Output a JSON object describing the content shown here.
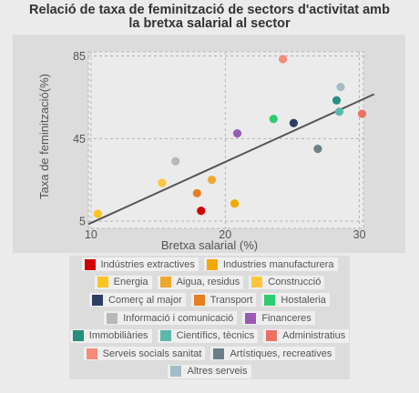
{
  "chart_data": {
    "type": "scatter",
    "title": "Relació de taxa de feminització de sectors d'activitat amb la bretxa salarial al sector",
    "title_lines": [
      "Relació de taxa de feminització de sectors d'activitat amb",
      "la bretxa salarial al sector"
    ],
    "xlabel": "Bretxa salarial (%)",
    "ylabel": "Taxa de feminització(%)",
    "xlim": [
      9.8,
      30.3
    ],
    "ylim": [
      1.5,
      87
    ],
    "xticks": [
      10,
      20,
      30
    ],
    "yticks": [
      5,
      45,
      85
    ],
    "grid": true,
    "legend_position": "bottom",
    "trendline": {
      "x": [
        9.8,
        31.1
      ],
      "y": [
        3.5,
        66.5
      ],
      "color": "#555555"
    },
    "points": [
      {
        "name": "Indústries extractives",
        "x": 18.2,
        "y": 10.0,
        "color": "#d40000"
      },
      {
        "name": "Industries manufacturera",
        "x": 20.7,
        "y": 13.5,
        "color": "#f5a800"
      },
      {
        "name": "Energia",
        "x": 10.5,
        "y": 8.5,
        "color": "#fdc521"
      },
      {
        "name": "Aigua, residus",
        "x": 19.0,
        "y": 25.0,
        "color": "#f1a630"
      },
      {
        "name": "Construcció",
        "x": 15.3,
        "y": 23.5,
        "color": "#ffc53d"
      },
      {
        "name": "Comerç al major",
        "x": 25.1,
        "y": 52.5,
        "color": "#2e3f63"
      },
      {
        "name": "Transport",
        "x": 17.9,
        "y": 18.5,
        "color": "#e67e22"
      },
      {
        "name": "Hostaleria",
        "x": 23.6,
        "y": 54.5,
        "color": "#2ecc71"
      },
      {
        "name": "Informació i comunicació",
        "x": 16.3,
        "y": 34.0,
        "color": "#b8b8b8"
      },
      {
        "name": "Financeres",
        "x": 20.9,
        "y": 47.5,
        "color": "#9b59b6"
      },
      {
        "name": "Immobiliàries",
        "x": 28.3,
        "y": 63.5,
        "color": "#26907e"
      },
      {
        "name": "Científics, tècnics",
        "x": 28.5,
        "y": 58.0,
        "color": "#5cb8aa"
      },
      {
        "name": "Administratius",
        "x": 30.2,
        "y": 57.0,
        "color": "#ec7063"
      },
      {
        "name": "Serveis socials sanitat",
        "x": 24.3,
        "y": 83.5,
        "color": "#f68c7a"
      },
      {
        "name": "Artístiques, recreatives",
        "x": 26.9,
        "y": 40.0,
        "color": "#6d8089"
      },
      {
        "name": "Altres serveis",
        "x": 28.6,
        "y": 70.0,
        "color": "#a4bcc4"
      }
    ]
  },
  "legend_rows": [
    [
      0,
      1
    ],
    [
      2,
      3,
      4
    ],
    [
      5,
      6,
      7
    ],
    [
      8,
      9
    ],
    [
      10,
      11,
      12
    ],
    [
      13,
      14
    ],
    [
      15
    ]
  ],
  "colors": {
    "background": "#ebebeb",
    "panel": "#dcdcdc",
    "plot_area": "#ebebeb",
    "grid": "#a9a9a9",
    "axis_text": "#555555"
  }
}
